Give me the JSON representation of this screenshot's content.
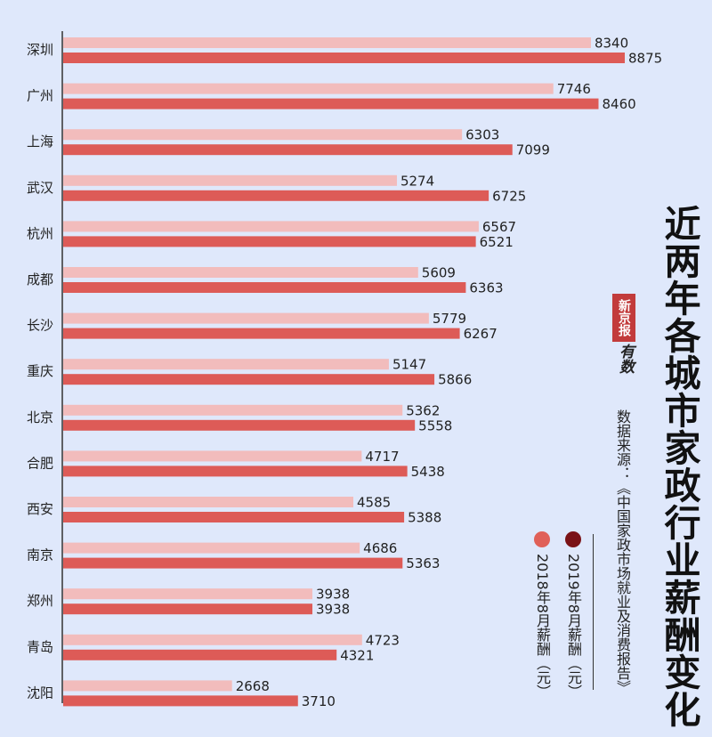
{
  "title": "近两年各城市家政行业薪酬变化",
  "logo": {
    "red_text": "新京报",
    "script_text": "有数"
  },
  "source": "数据来源：《中国家政市场就业及消费报告》",
  "colors": {
    "background": "#dfe8fb",
    "bar_2018": "#f2bcbc",
    "bar_2019": "#dd5b57",
    "legend_2019": "#7a1216",
    "legend_2018": "#e06058"
  },
  "legend": [
    {
      "label": "2019年8月薪酬（元）",
      "color": "#7a1216"
    },
    {
      "label": "2018年8月薪酬（元）",
      "color": "#e06058"
    }
  ],
  "chart_data": {
    "type": "bar",
    "orientation": "horizontal",
    "title": "近两年各城市家政行业薪酬变化",
    "categories": [
      "深圳",
      "广州",
      "上海",
      "武汉",
      "杭州",
      "成都",
      "长沙",
      "重庆",
      "北京",
      "合肥",
      "西安",
      "南京",
      "郑州",
      "青岛",
      "沈阳"
    ],
    "series": [
      {
        "name": "2018年8月薪酬（元）",
        "color": "#f2bcbc",
        "values": [
          8340,
          7746,
          6303,
          5274,
          6567,
          5609,
          5779,
          5147,
          5362,
          4717,
          4585,
          4686,
          3938,
          4723,
          2668
        ]
      },
      {
        "name": "2019年8月薪酬（元）",
        "color": "#dd5b57",
        "values": [
          8875,
          8460,
          7099,
          6725,
          6521,
          6363,
          6267,
          5866,
          5558,
          5438,
          5388,
          5363,
          3938,
          4321,
          3710
        ]
      }
    ],
    "xlim": [
      0,
      9500
    ],
    "grid": false,
    "legend_position": "right"
  }
}
